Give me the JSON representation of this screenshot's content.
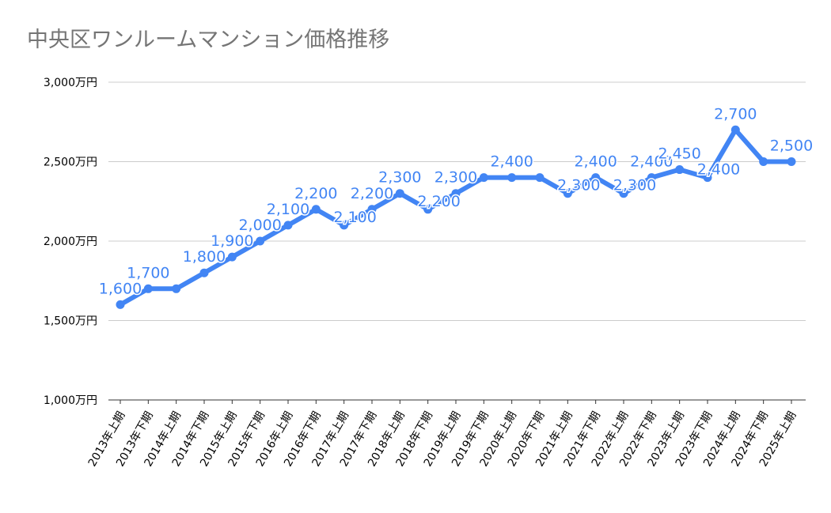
{
  "chart_data": {
    "type": "line",
    "title": "中央区ワンルームマンション価格推移",
    "xlabel": "",
    "ylabel": "",
    "categories": [
      "2013年上期",
      "2013年下期",
      "2014年上期",
      "2014年下期",
      "2015年上期",
      "2015年下期",
      "2016年上期",
      "2016年下期",
      "2017年上期",
      "2017年下期",
      "2018年上期",
      "2018年下期",
      "2019年上期",
      "2019年下期",
      "2020年上期",
      "2020年下期",
      "2021年上期",
      "2021年下期",
      "2022年上期",
      "2022年下期",
      "2023年上期",
      "2023年下期",
      "2024年上期",
      "2024年下期",
      "2025年上期"
    ],
    "values": [
      1600,
      1700,
      1700,
      1800,
      1900,
      2000,
      2100,
      2200,
      2100,
      2200,
      2300,
      2200,
      2300,
      2400,
      2400,
      2400,
      2300,
      2400,
      2300,
      2400,
      2450,
      2400,
      2700,
      2500,
      2500
    ],
    "data_labels": [
      "1,600",
      "1,700",
      null,
      "1,800",
      "1,900",
      "2,000",
      "2,100",
      "2,200",
      "2,100",
      "2,200",
      "2,300",
      "2,200",
      "2,300",
      null,
      "2,400",
      null,
      "2,300",
      "2,400",
      "2,300",
      "2,400",
      "2,450",
      "2,400",
      "2,700",
      null,
      "2,500"
    ],
    "ylim": [
      1000,
      3000
    ],
    "yticks": [
      1000,
      1500,
      2000,
      2500,
      3000
    ],
    "ytick_labels": [
      "1,000万円",
      "1,500万円",
      "2,000万円",
      "2,500万円",
      "3,000万円"
    ],
    "grid": true,
    "legend": "none",
    "color": "#4285f4"
  }
}
